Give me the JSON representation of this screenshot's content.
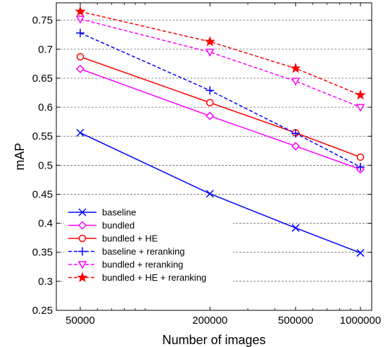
{
  "chart_data": {
    "type": "line",
    "xlabel": "Number of images",
    "ylabel": "mAP",
    "x_scale": "log",
    "x": [
      50000,
      200000,
      500000,
      1000000
    ],
    "xticks": [
      "50000",
      "200000",
      "500000",
      "1000000"
    ],
    "yticks": [
      "0.25",
      "0.3",
      "0.35",
      "0.4",
      "0.45",
      "0.5",
      "0.55",
      "0.6",
      "0.65",
      "0.7",
      "0.75"
    ],
    "ylim": [
      0.25,
      0.78
    ],
    "grid": "horizontal-dashed",
    "legend_position": "bottom-left",
    "series": [
      {
        "name": "baseline",
        "values": [
          0.556,
          0.451,
          0.392,
          0.349
        ],
        "color": "#0000ff",
        "dash": "solid",
        "marker": "x"
      },
      {
        "name": "bundled",
        "values": [
          0.666,
          0.585,
          0.533,
          0.493
        ],
        "color": "#ff00ff",
        "dash": "solid",
        "marker": "diamond"
      },
      {
        "name": "bundled + HE",
        "values": [
          0.687,
          0.608,
          0.556,
          0.514
        ],
        "color": "#ff0000",
        "dash": "solid",
        "marker": "circle"
      },
      {
        "name": "baseline + reranking",
        "values": [
          0.728,
          0.629,
          0.555,
          0.497
        ],
        "color": "#0000ff",
        "dash": "dashed",
        "marker": "plus"
      },
      {
        "name": "bundled + reranking",
        "values": [
          0.752,
          0.695,
          0.645,
          0.6
        ],
        "color": "#ff00ff",
        "dash": "dashed",
        "marker": "triangle-down"
      },
      {
        "name": "bundled + HE + reranking",
        "values": [
          0.765,
          0.713,
          0.667,
          0.621
        ],
        "color": "#ff0000",
        "dash": "dashed",
        "marker": "star"
      }
    ]
  }
}
